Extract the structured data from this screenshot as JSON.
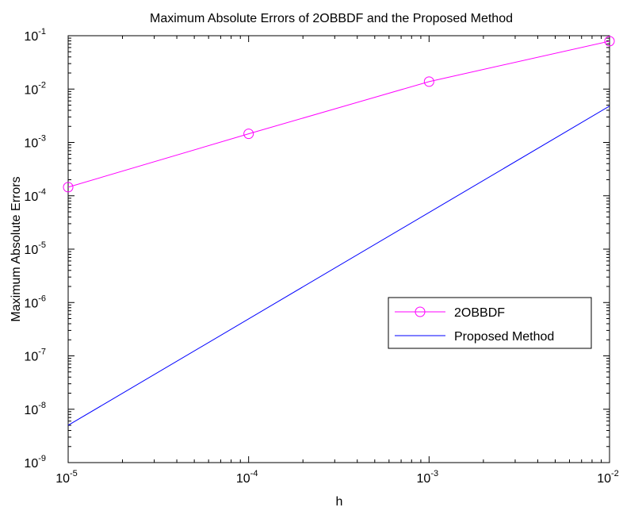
{
  "chart_data": {
    "type": "line",
    "title": "Maximum Absolute Errors of 2OBBDF and the Proposed Method",
    "xlabel": "h",
    "ylabel": "Maximum Absolute Errors",
    "xscale": "log",
    "yscale": "log",
    "xlim": [
      1e-05,
      0.01
    ],
    "ylim": [
      1e-09,
      0.1
    ],
    "x_ticks": [
      {
        "base": "10",
        "exp": "-5",
        "value": 1e-05
      },
      {
        "base": "10",
        "exp": "-4",
        "value": 0.0001
      },
      {
        "base": "10",
        "exp": "-3",
        "value": 0.001
      },
      {
        "base": "10",
        "exp": "-2",
        "value": 0.01
      }
    ],
    "y_ticks": [
      {
        "base": "10",
        "exp": "-9",
        "value": 1e-09
      },
      {
        "base": "10",
        "exp": "-8",
        "value": 1e-08
      },
      {
        "base": "10",
        "exp": "-7",
        "value": 1e-07
      },
      {
        "base": "10",
        "exp": "-6",
        "value": 1e-06
      },
      {
        "base": "10",
        "exp": "-5",
        "value": 1e-05
      },
      {
        "base": "10",
        "exp": "-4",
        "value": 0.0001
      },
      {
        "base": "10",
        "exp": "-3",
        "value": 0.001
      },
      {
        "base": "10",
        "exp": "-2",
        "value": 0.01
      },
      {
        "base": "10",
        "exp": "-1",
        "value": 0.1
      }
    ],
    "grid": false,
    "legend_position": "right",
    "series": [
      {
        "name": "2OBBDF",
        "color": "#ff00ff",
        "marker": "circle",
        "x": [
          1e-05,
          0.0001,
          0.001,
          0.01
        ],
        "y": [
          0.000145,
          0.00145,
          0.0138,
          0.079
        ]
      },
      {
        "name": "Proposed Method",
        "color": "#0000ff",
        "marker": "none",
        "x": [
          1e-05,
          0.01
        ],
        "y": [
          5e-09,
          0.0048
        ]
      }
    ]
  }
}
